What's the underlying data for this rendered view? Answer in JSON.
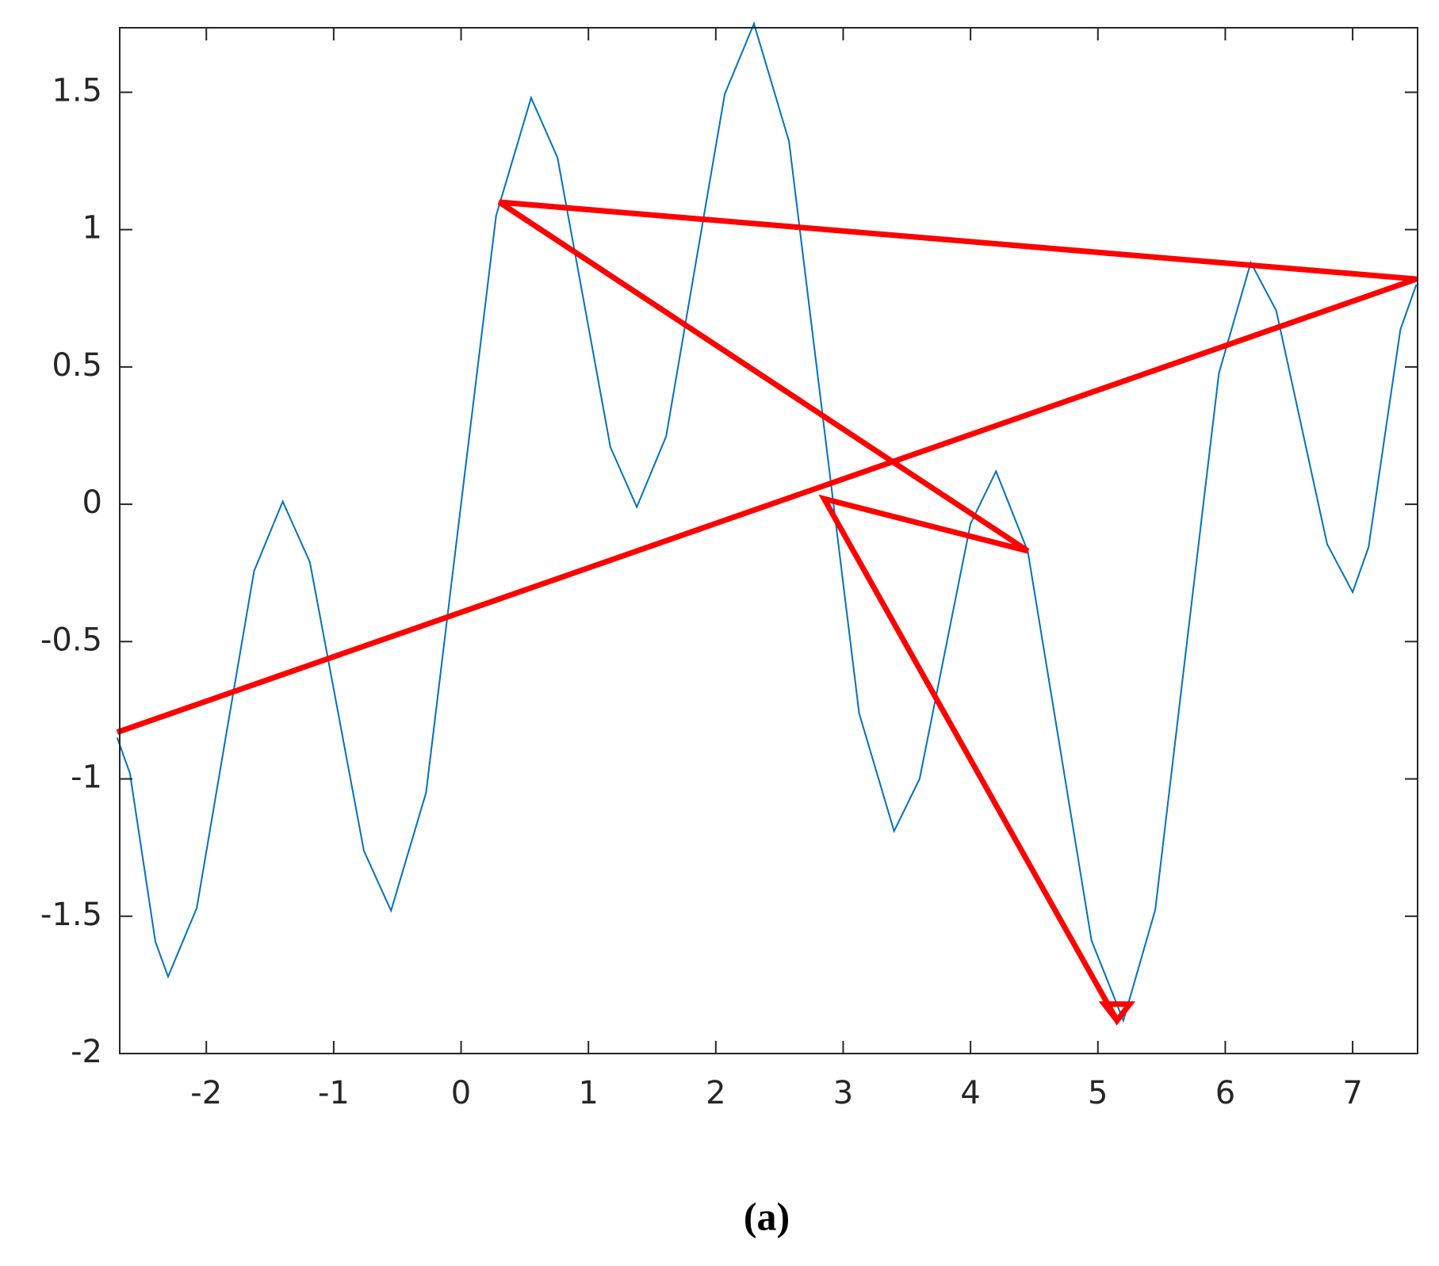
{
  "chart_data": {
    "type": "line",
    "caption": "(a)",
    "xlim": [
      -2.68,
      7.51
    ],
    "ylim": [
      -2,
      1.735
    ],
    "xticks": [
      -2,
      -1,
      0,
      1,
      2,
      3,
      4,
      5,
      6,
      7
    ],
    "yticks": [
      -2,
      -1.5,
      -1,
      -0.5,
      0,
      0.5,
      1,
      1.5
    ],
    "series": [
      {
        "color": "#0072bd",
        "width": 2,
        "x": [
          -2.7,
          -2.6,
          -2.5,
          -2.4,
          -2.3,
          -2.075,
          -1.85,
          -1.625,
          -1.4,
          -1.1875,
          -0.975,
          -0.7625,
          -0.55,
          -0.275,
          0,
          0.275,
          0.55,
          0.7575,
          0.965,
          1.1725,
          1.38,
          1.61,
          1.84,
          2.07,
          2.3,
          2.575,
          2.85,
          3.125,
          3.4,
          3.6,
          3.8,
          4.0,
          4.2,
          4.45,
          4.7,
          4.95,
          5.2,
          5.45,
          5.7,
          5.95,
          6.2,
          6.4,
          6.6,
          6.8,
          7.0,
          7.125,
          7.25,
          7.375,
          7.5
        ],
        "values": [
          -0.85,
          -0.98,
          -1.285,
          -1.593,
          -1.72,
          -1.47,
          -0.855,
          -0.243,
          0.01,
          -0.21,
          -0.735,
          -1.262,
          -1.48,
          -1.05,
          0,
          1.05,
          1.48,
          1.262,
          0.735,
          0.208,
          -0.01,
          0.247,
          0.87,
          1.493,
          1.75,
          1.321,
          0.28,
          -0.761,
          -1.19,
          -1.0,
          -0.535,
          -0.071,
          0.12,
          -0.172,
          -0.88,
          -1.588,
          -1.88,
          -1.477,
          -0.5,
          0.477,
          0.88,
          0.705,
          0.28,
          -0.145,
          -0.32,
          -0.156,
          0.24,
          0.636,
          0.8
        ]
      },
      {
        "color": "#ff0000",
        "width": 7,
        "x": [
          -2.7,
          7.5,
          0.3,
          4.45,
          2.85,
          5.15,
          5.25,
          5.05,
          5.15
        ],
        "values": [
          -0.83,
          0.82,
          1.1,
          -0.17,
          0.02,
          -1.88,
          -1.82,
          -1.82,
          -1.88
        ]
      }
    ]
  }
}
